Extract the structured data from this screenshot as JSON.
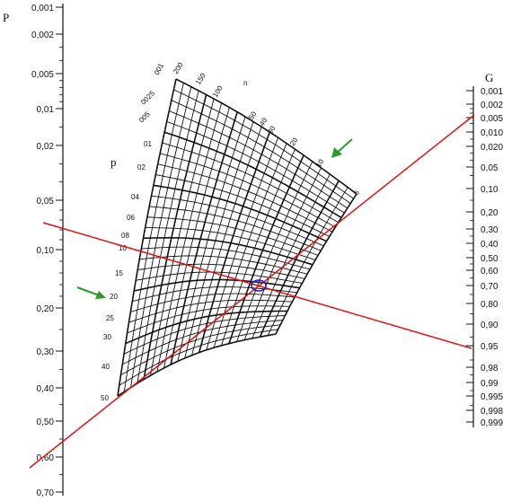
{
  "title_left": "P",
  "grid_p_label": "p",
  "grid_n_label": "n",
  "title_right": "G",
  "left_scale": [
    {
      "label": "0,001",
      "v": 0.001
    },
    {
      "label": "0,002",
      "v": 0.002
    },
    {
      "label": "0,005",
      "v": 0.005
    },
    {
      "label": "0,01",
      "v": 0.01
    },
    {
      "label": "0,02",
      "v": 0.02
    },
    {
      "label": "0,05",
      "v": 0.05
    },
    {
      "label": "0,10",
      "v": 0.1
    },
    {
      "label": "0,20",
      "v": 0.2
    },
    {
      "label": "0,30",
      "v": 0.3
    },
    {
      "label": "0,40",
      "v": 0.4
    },
    {
      "label": "0,50",
      "v": 0.5
    },
    {
      "label": "0,60",
      "v": 0.6
    },
    {
      "label": "0,70",
      "v": 0.7
    }
  ],
  "right_scale": [
    {
      "label": "0,001",
      "v": 0.001
    },
    {
      "label": "0,002",
      "v": 0.002
    },
    {
      "label": "0,005",
      "v": 0.005
    },
    {
      "label": "0,010",
      "v": 0.01
    },
    {
      "label": "0,020",
      "v": 0.02
    },
    {
      "label": "0,05",
      "v": 0.05
    },
    {
      "label": "0,10",
      "v": 0.1
    },
    {
      "label": "0,20",
      "v": 0.2
    },
    {
      "label": "0,30",
      "v": 0.3
    },
    {
      "label": "0,40",
      "v": 0.4
    },
    {
      "label": "0,50",
      "v": 0.5
    },
    {
      "label": "0,60",
      "v": 0.6
    },
    {
      "label": "0,70",
      "v": 0.7
    },
    {
      "label": "0,80",
      "v": 0.8
    },
    {
      "label": "0,90",
      "v": 0.9
    },
    {
      "label": "0,95",
      "v": 0.95
    },
    {
      "label": "0,98",
      "v": 0.98
    },
    {
      "label": "0,99",
      "v": 0.99
    },
    {
      "label": "0,995",
      "v": 0.995
    },
    {
      "label": "0,998",
      "v": 0.998
    },
    {
      "label": "0,999",
      "v": 0.999
    }
  ],
  "grid_p_labels": [
    "001",
    "0025",
    "005",
    "01",
    "02",
    "04",
    "06",
    "08",
    "10",
    "15",
    "20",
    "25",
    "30",
    "40",
    "50"
  ],
  "grid_n_labels": [
    "200",
    "150",
    "100",
    "50",
    "40",
    "30",
    "20",
    "10",
    "5"
  ],
  "colors": {
    "red_line": "#e01010",
    "arrow": "#2a9a2a",
    "marker": "#1a1ad0",
    "ink": "#111111"
  },
  "icons": [
    "green-arrow-icon",
    "green-arrow-icon",
    "intersection-circle-icon"
  ]
}
